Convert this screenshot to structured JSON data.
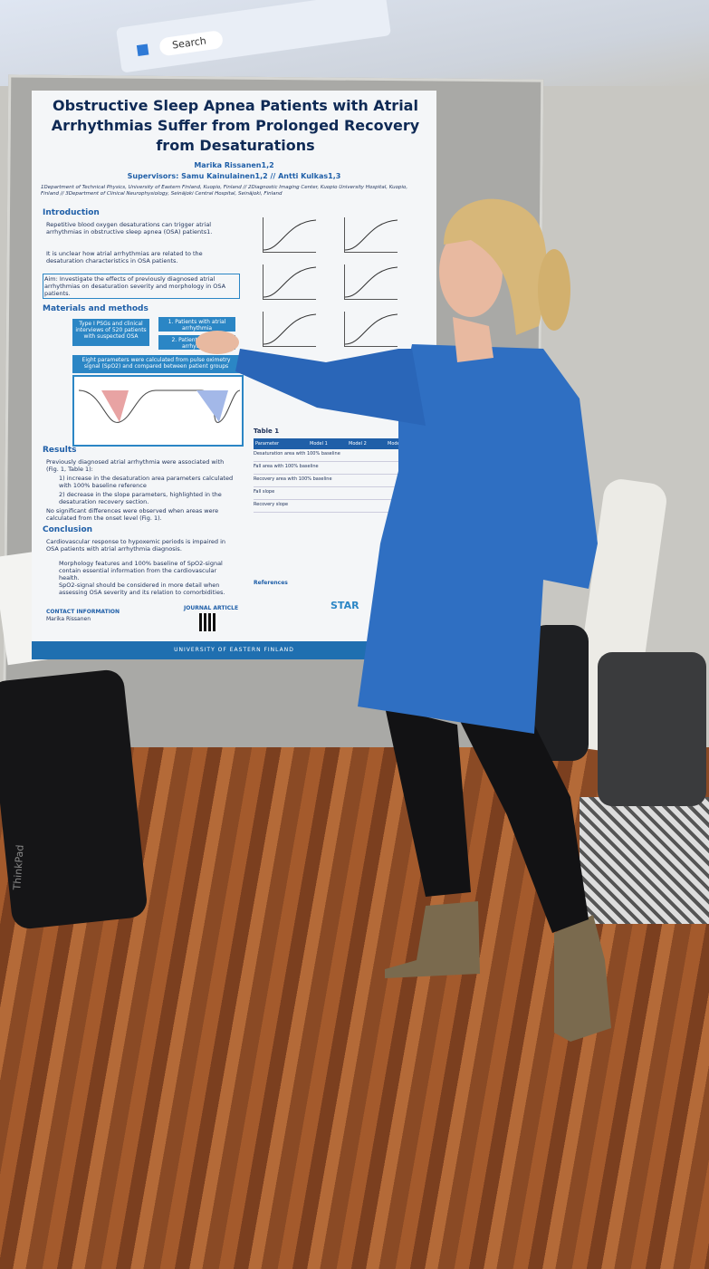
{
  "taskbar": {
    "search": "Search"
  },
  "poster": {
    "title": "Obstructive Sleep Apnea Patients with Atrial Arrhythmias Suffer from Prolonged Recovery from Desaturations",
    "author": "Marika Rissanen1,2",
    "supervisors": "Supervisors: Samu Kainulainen1,2 // Antti Kulkas1,3",
    "affiliations": "1Department of Technical Physics, University of Eastern Finland, Kuopio, Finland // 2Diagnostic Imaging Center, Kuopio University Hospital, Kuopio, Finland // 3Department of Clinical Neurophysiology, Seinäjoki Central Hospital, Seinäjoki, Finland",
    "introduction": {
      "heading": "Introduction",
      "bullets": [
        "Repetitive blood oxygen desaturations can trigger atrial arrhythmias in obstructive sleep apnea (OSA) patients1.",
        "It is unclear how atrial arrhythmias are related to the desaturation characteristics in OSA patients."
      ]
    },
    "aim": "Aim: Investigate the effects of previously diagnosed atrial arrhythmias on desaturation severity and morphology in OSA patients.",
    "methods": {
      "heading": "Materials and methods",
      "box1": "Type I PSGs and clinical interviews of 520 patients with suspected OSA",
      "box2": "1. Patients with atrial arrhythmia",
      "box3": "2. Patients without arrhythmia",
      "box4": "Eight parameters were calculated from pulse oximetry signal (SpO2) and compared between patient groups"
    },
    "results": {
      "heading": "Results",
      "bullets": [
        "Previously diagnosed atrial arrhythmia were associated with (Fig. 1, Table 1):",
        "1) increase in the desaturation area parameters calculated with 100% baseline reference",
        "2) decrease in the slope parameters, highlighted in the desaturation recovery section.",
        "No significant differences were observed when areas were calculated from the onset level (Fig. 1)."
      ]
    },
    "conclusion": {
      "heading": "Conclusion",
      "bullets": [
        "Cardiovascular response to hypoxemic periods is impaired in OSA patients with atrial arrhythmia diagnosis.",
        "Morphology features and 100% baseline of SpO2-signal contain essential information from the cardiovascular health.",
        "SpO2-signal should be considered in more detail when assessing OSA severity and its relation to comorbidities."
      ]
    },
    "table_title": "Table 1",
    "table_cols": [
      "Parameter",
      "Model 1",
      "Model 2",
      "Model 3"
    ],
    "table_rows": [
      "Desaturation area with 100% baseline",
      "Fall area with 100% baseline",
      "Recovery area with 100% baseline",
      "Fall slope",
      "Recovery slope"
    ],
    "contact": "CONTACT INFORMATION",
    "contact_name": "Marika Rissanen",
    "journal": "JOURNAL ARTICLE",
    "references": "References",
    "star": "STAR",
    "footer": "UNIVERSITY OF EASTERN FINLAND"
  },
  "laptop": {
    "brand": "ThinkPad"
  }
}
